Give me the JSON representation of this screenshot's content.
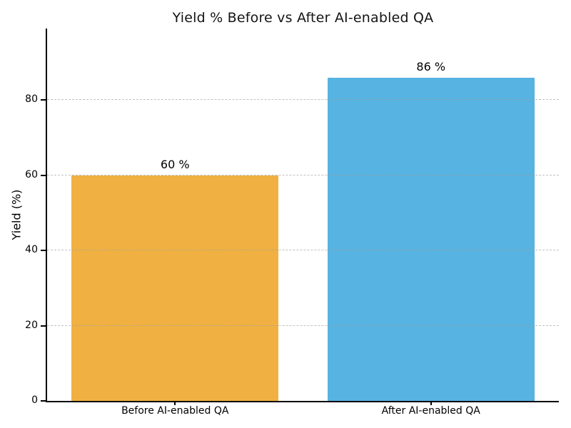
{
  "figure": {
    "background": "#ffffff"
  },
  "chart_data": {
    "type": "bar",
    "title": "Yield % Before vs After AI-enabled QA",
    "categories": [
      "Before AI-enabled QA",
      "After AI-enabled QA"
    ],
    "values": [
      60,
      86
    ],
    "bar_labels": [
      "60 %",
      "86 %"
    ],
    "bar_colors": [
      "#f0b142",
      "#57b3e1"
    ],
    "ylabel": "Yield (%)",
    "yticks": [
      0,
      20,
      40,
      60,
      80
    ],
    "ylim": [
      0,
      99
    ],
    "grid": "horizontal-dashed",
    "grid_color": "#c4c4c4",
    "spine_color": "#000000",
    "text_color": "#000000",
    "legend_position": "none"
  }
}
